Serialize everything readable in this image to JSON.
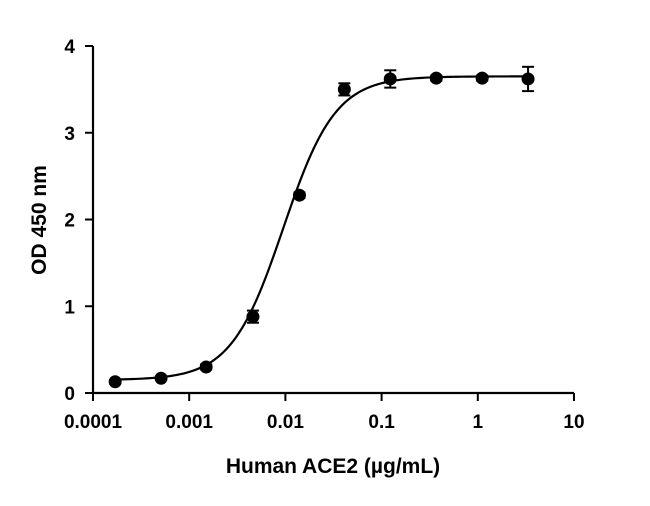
{
  "chart_data": {
    "type": "scatter",
    "title": "",
    "xlabel": "Human ACE2 (µg/mL)",
    "ylabel": "OD 450 nm",
    "xscale": "log",
    "xlim": [
      0.0001,
      10
    ],
    "ylim": [
      0,
      4
    ],
    "xticks": [
      {
        "value": 0.0001,
        "label": "0.0001"
      },
      {
        "value": 0.001,
        "label": "0.001"
      },
      {
        "value": 0.01,
        "label": "0.01"
      },
      {
        "value": 0.1,
        "label": "0.1"
      },
      {
        "value": 1,
        "label": "1"
      },
      {
        "value": 10,
        "label": "10"
      }
    ],
    "yticks": [
      {
        "value": 0,
        "label": "0"
      },
      {
        "value": 1,
        "label": "1"
      },
      {
        "value": 2,
        "label": "2"
      },
      {
        "value": 3,
        "label": "3"
      },
      {
        "value": 4,
        "label": "4"
      }
    ],
    "grid": false,
    "legend": "none",
    "series": [
      {
        "x": [
          0.00017,
          0.00051,
          0.0015,
          0.0046,
          0.014,
          0.041,
          0.123,
          0.37,
          1.11,
          3.33
        ],
        "y": [
          0.13,
          0.17,
          0.3,
          0.88,
          2.28,
          3.5,
          3.62,
          3.63,
          3.63,
          3.62
        ],
        "error": [
          0.02,
          0.02,
          0.03,
          0.07,
          0.03,
          0.07,
          0.1,
          0.03,
          0.03,
          0.14
        ]
      }
    ],
    "fit": {
      "type": "4PL",
      "bottom": 0.15,
      "top": 3.65,
      "ec50": 0.0095,
      "hill": 1.6
    },
    "color": "#000000"
  }
}
